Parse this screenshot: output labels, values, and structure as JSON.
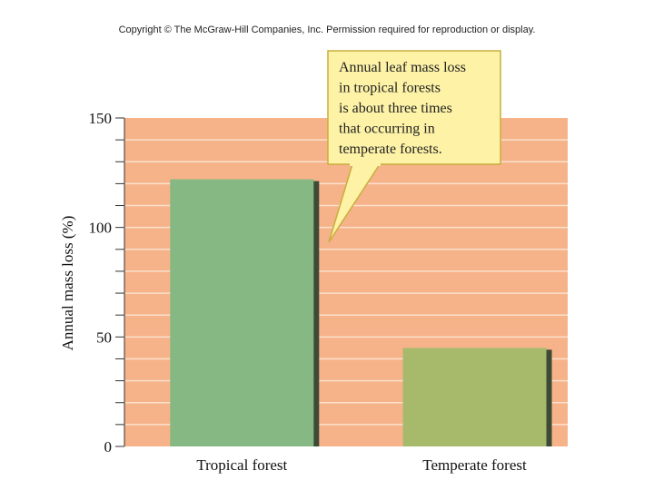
{
  "copyright": "Copyright © The McGraw-Hill Companies, Inc. Permission required for reproduction or display.",
  "colors": {
    "plot_background": "#f6b38a",
    "gridline": "#fbe0cc",
    "tropical_bar": "#85b882",
    "temperate_bar": "#a7ba6c",
    "bar_shadow": "#3e4a35",
    "callout_fill": "#fdf2a6",
    "callout_border": "#c9ae3c"
  },
  "chart_data": {
    "type": "bar",
    "categories": [
      "Tropical forest",
      "Temperate forest"
    ],
    "values": [
      122,
      45
    ],
    "title": "",
    "xlabel": "",
    "ylabel": "Annual mass loss (%)",
    "ylim": [
      0,
      150
    ],
    "yticks": [
      0,
      50,
      100,
      150
    ],
    "minor_tick_step": 10,
    "grid": true,
    "annotation": {
      "lines": [
        "Annual leaf mass loss",
        "in tropical forests",
        "is about three times",
        "that occurring in",
        "temperate forests."
      ]
    }
  }
}
